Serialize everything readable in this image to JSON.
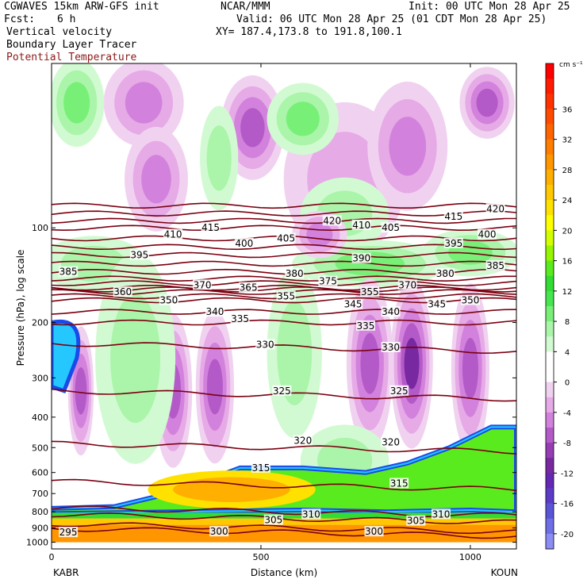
{
  "header": {
    "model": "CGWAVES 15km ARW-GFS init",
    "center": "NCAR/MMM",
    "init": "Init: 00 UTC Mon 28 Apr 25",
    "fcst_label": "Fcst:",
    "fcst_value": "6 h",
    "valid": "Valid: 06 UTC Mon 28 Apr 25 (01 CDT Mon 28 Apr 25)",
    "xy": "XY= 187.4,173.8 to 191.8,100.1",
    "field1": "Vertical velocity",
    "field2": "Boundary Layer Tracer",
    "field3": "Potential Temperature"
  },
  "colors": {
    "theta_contour": "#7a0010",
    "field3_text": "#8b1a1a",
    "sink": "#b45cc8",
    "rise": "#34d83a",
    "tracer_blue": "#1a4be8"
  },
  "chart_data": {
    "type": "heatmap",
    "xlabel": "Distance (km)",
    "ylabel": "Pressure (hPa), log scale",
    "x_ticks": [
      "0",
      "500",
      "1000"
    ],
    "x_tick_values": [
      0,
      500,
      1000
    ],
    "xlim": [
      0,
      1110
    ],
    "x_endpoints": [
      "KABR",
      "KOUN"
    ],
    "y_scale": "log",
    "y_ticks": [
      "100",
      "200",
      "300",
      "400",
      "500",
      "600",
      "700",
      "800",
      "900",
      "1000"
    ],
    "y_tick_values": [
      100,
      200,
      300,
      400,
      500,
      600,
      700,
      800,
      900,
      1000
    ],
    "colorbar": {
      "units": "cm s⁻¹",
      "labels": [
        "36",
        "32",
        "28",
        "24",
        "20",
        "16",
        "12",
        "8",
        "4",
        "0",
        "-4",
        "-8",
        "-12",
        "-16",
        "-20"
      ],
      "levels": [
        40,
        38,
        36,
        34,
        32,
        30,
        28,
        26,
        24,
        22,
        20,
        18,
        16,
        14,
        12,
        10,
        8,
        6,
        4,
        2,
        0,
        -2,
        -4,
        -6,
        -8,
        -10,
        -12,
        -14,
        -16,
        -18,
        -20,
        -22
      ],
      "colors": [
        "#ff0000",
        "#ff1a00",
        "#ff3200",
        "#ff4b00",
        "#ff6400",
        "#ff7d00",
        "#ff9600",
        "#ffaf00",
        "#ffc800",
        "#ffe100",
        "#ffff00",
        "#d2ff00",
        "#96f500",
        "#5aeb1e",
        "#32dc32",
        "#46e650",
        "#78f078",
        "#aaf5aa",
        "#d2fad2",
        "#ffffff",
        "#ffffff",
        "#f0d2f0",
        "#e6aae6",
        "#d282dc",
        "#b45ac8",
        "#963cb4",
        "#7828a0",
        "#6428b4",
        "#5a3cc8",
        "#5a55d7",
        "#6e6ee6",
        "#8c8cf5"
      ]
    },
    "theta_contours": [
      {
        "value": 295,
        "p": 930
      },
      {
        "value": 300,
        "p": 900
      },
      {
        "value": 305,
        "p": 840
      },
      {
        "value": 310,
        "p": 800
      },
      {
        "value": 315,
        "p": 660
      },
      {
        "value": 320,
        "p": 500
      },
      {
        "value": 325,
        "p": 340
      },
      {
        "value": 330,
        "p": 240
      },
      {
        "value": 335,
        "p": 200
      },
      {
        "value": 340,
        "p": 185
      },
      {
        "value": 345,
        "p": 170
      },
      {
        "value": 350,
        "p": 165
      },
      {
        "value": 355,
        "p": 160
      },
      {
        "value": 360,
        "p": 157
      },
      {
        "value": 365,
        "p": 155
      },
      {
        "value": 370,
        "p": 150
      },
      {
        "value": 375,
        "p": 145
      },
      {
        "value": 380,
        "p": 138
      },
      {
        "value": 385,
        "p": 130
      },
      {
        "value": 390,
        "p": 122
      },
      {
        "value": 395,
        "p": 115
      },
      {
        "value": 400,
        "p": 108
      },
      {
        "value": 405,
        "p": 100
      },
      {
        "value": 410,
        "p": 95
      },
      {
        "value": 415,
        "p": 90
      },
      {
        "value": 420,
        "p": 85
      }
    ],
    "theta_labels": [
      {
        "text": "295",
        "x": 40,
        "p": 930
      },
      {
        "text": "300",
        "x": 400,
        "p": 925
      },
      {
        "text": "300",
        "x": 770,
        "p": 925
      },
      {
        "text": "305",
        "x": 530,
        "p": 850
      },
      {
        "text": "305",
        "x": 870,
        "p": 855
      },
      {
        "text": "310",
        "x": 620,
        "p": 815
      },
      {
        "text": "310",
        "x": 930,
        "p": 815
      },
      {
        "text": "315",
        "x": 500,
        "p": 580
      },
      {
        "text": "315",
        "x": 830,
        "p": 650
      },
      {
        "text": "320",
        "x": 600,
        "p": 475
      },
      {
        "text": "320",
        "x": 810,
        "p": 480
      },
      {
        "text": "325",
        "x": 550,
        "p": 330
      },
      {
        "text": "325",
        "x": 830,
        "p": 330
      },
      {
        "text": "330",
        "x": 510,
        "p": 235
      },
      {
        "text": "330",
        "x": 810,
        "p": 240
      },
      {
        "text": "335",
        "x": 450,
        "p": 195
      },
      {
        "text": "335",
        "x": 750,
        "p": 205
      },
      {
        "text": "340",
        "x": 390,
        "p": 185
      },
      {
        "text": "340",
        "x": 810,
        "p": 185
      },
      {
        "text": "345",
        "x": 720,
        "p": 175
      },
      {
        "text": "345",
        "x": 920,
        "p": 175
      },
      {
        "text": "350",
        "x": 280,
        "p": 170
      },
      {
        "text": "350",
        "x": 1000,
        "p": 170
      },
      {
        "text": "355",
        "x": 560,
        "p": 165
      },
      {
        "text": "355",
        "x": 760,
        "p": 160
      },
      {
        "text": "360",
        "x": 170,
        "p": 160
      },
      {
        "text": "365",
        "x": 470,
        "p": 155
      },
      {
        "text": "370",
        "x": 360,
        "p": 152
      },
      {
        "text": "370",
        "x": 850,
        "p": 152
      },
      {
        "text": "375",
        "x": 660,
        "p": 148
      },
      {
        "text": "380",
        "x": 580,
        "p": 140
      },
      {
        "text": "380",
        "x": 940,
        "p": 140
      },
      {
        "text": "385",
        "x": 40,
        "p": 138
      },
      {
        "text": "385",
        "x": 1060,
        "p": 132
      },
      {
        "text": "390",
        "x": 740,
        "p": 125
      },
      {
        "text": "395",
        "x": 210,
        "p": 122
      },
      {
        "text": "395",
        "x": 960,
        "p": 112
      },
      {
        "text": "400",
        "x": 460,
        "p": 112
      },
      {
        "text": "400",
        "x": 1040,
        "p": 105
      },
      {
        "text": "405",
        "x": 560,
        "p": 108
      },
      {
        "text": "405",
        "x": 810,
        "p": 100
      },
      {
        "text": "410",
        "x": 290,
        "p": 105
      },
      {
        "text": "410",
        "x": 740,
        "p": 98
      },
      {
        "text": "415",
        "x": 380,
        "p": 100
      },
      {
        "text": "415",
        "x": 960,
        "p": 92
      },
      {
        "text": "420",
        "x": 670,
        "p": 95
      },
      {
        "text": "420",
        "x": 1060,
        "p": 87
      }
    ],
    "regions": [
      {
        "kind": "sink",
        "x": 220,
        "p": 40,
        "rx": 90,
        "rp": 0.1,
        "strength": 2
      },
      {
        "kind": "sink",
        "x": 480,
        "p": 48,
        "rx": 70,
        "rp": 0.12,
        "strength": 3
      },
      {
        "kind": "sink",
        "x": 700,
        "p": 70,
        "rx": 140,
        "rp": 0.18,
        "strength": 1
      },
      {
        "kind": "sink",
        "x": 1040,
        "p": 40,
        "rx": 60,
        "rp": 0.08,
        "strength": 3
      },
      {
        "kind": "sink",
        "x": 850,
        "p": 55,
        "rx": 90,
        "rp": 0.15,
        "strength": 2
      },
      {
        "kind": "sink",
        "x": 250,
        "p": 70,
        "rx": 70,
        "rp": 0.12,
        "strength": 2
      },
      {
        "kind": "rise",
        "x": 60,
        "p": 40,
        "rx": 60,
        "rp": 0.1,
        "strength": 2
      },
      {
        "kind": "rise",
        "x": 600,
        "p": 45,
        "rx": 80,
        "rp": 0.08,
        "strength": 2
      },
      {
        "kind": "rise",
        "x": 700,
        "p": 90,
        "rx": 100,
        "rp": 0.08,
        "strength": 1
      },
      {
        "kind": "rise",
        "x": 400,
        "p": 60,
        "rx": 40,
        "rp": 0.12,
        "strength": 1
      },
      {
        "kind": "rise",
        "x": 760,
        "p": 130,
        "rx": 180,
        "rp": 0.05,
        "strength": 2
      },
      {
        "kind": "rise",
        "x": 1000,
        "p": 120,
        "rx": 110,
        "rp": 0.05,
        "strength": 2
      },
      {
        "kind": "rise",
        "x": 100,
        "p": 130,
        "rx": 120,
        "rp": 0.06,
        "strength": 1
      },
      {
        "kind": "sink",
        "x": 640,
        "p": 105,
        "rx": 60,
        "rp": 0.05,
        "strength": 2
      },
      {
        "kind": "sink",
        "x": 760,
        "p": 270,
        "rx": 50,
        "rp": 0.2,
        "strength": 3
      },
      {
        "kind": "sink",
        "x": 860,
        "p": 270,
        "rx": 45,
        "rp": 0.2,
        "strength": 4
      },
      {
        "kind": "sink",
        "x": 1000,
        "p": 280,
        "rx": 40,
        "rp": 0.2,
        "strength": 3
      },
      {
        "kind": "sink",
        "x": 290,
        "p": 330,
        "rx": 40,
        "rp": 0.18,
        "strength": 3
      },
      {
        "kind": "sink",
        "x": 390,
        "p": 320,
        "rx": 40,
        "rp": 0.18,
        "strength": 3
      },
      {
        "kind": "sink",
        "x": 70,
        "p": 330,
        "rx": 25,
        "rp": 0.15,
        "strength": 3
      },
      {
        "kind": "rise",
        "x": 200,
        "p": 260,
        "rx": 90,
        "rp": 0.25,
        "strength": 1
      },
      {
        "kind": "rise",
        "x": 580,
        "p": 250,
        "rx": 60,
        "rp": 0.2,
        "strength": 1
      },
      {
        "kind": "rise",
        "x": 700,
        "p": 550,
        "rx": 100,
        "rp": 0.08,
        "strength": 1
      }
    ],
    "tracer_band": {
      "top_p": [
        [
          0,
          780
        ],
        [
          150,
          770
        ],
        [
          300,
          690
        ],
        [
          450,
          580
        ],
        [
          600,
          580
        ],
        [
          750,
          600
        ],
        [
          850,
          560
        ],
        [
          950,
          500
        ],
        [
          1050,
          430
        ],
        [
          1110,
          430
        ]
      ],
      "bottom_p": [
        [
          0,
          810
        ],
        [
          300,
          800
        ],
        [
          600,
          790
        ],
        [
          800,
          800
        ],
        [
          1000,
          790
        ],
        [
          1110,
          800
        ]
      ],
      "core": {
        "x": 430,
        "p": 680,
        "rx": 200,
        "rp": 0.07
      }
    }
  }
}
